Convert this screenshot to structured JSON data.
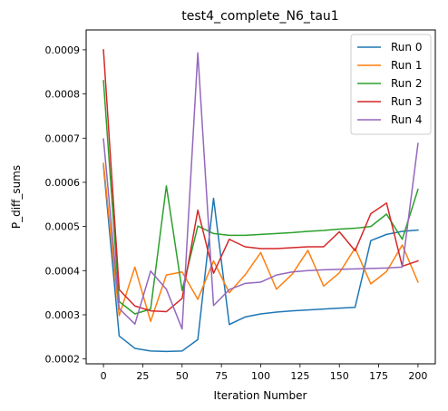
{
  "chart_data": {
    "type": "line",
    "title": "test4_complete_N6_tau1",
    "xlabel": "Iteration Number",
    "ylabel": "P_diff_sums",
    "xlim": [
      -11,
      211
    ],
    "ylim": [
      0.000189,
      0.000945
    ],
    "xticks": [
      0,
      25,
      50,
      75,
      100,
      125,
      150,
      175,
      200
    ],
    "xtick_labels": [
      "0",
      "25",
      "50",
      "75",
      "100",
      "125",
      "150",
      "175",
      "200"
    ],
    "yticks": [
      0.0002,
      0.0003,
      0.0004,
      0.0005,
      0.0006,
      0.0007,
      0.0008,
      0.0009
    ],
    "ytick_labels": [
      "0.0002",
      "0.0003",
      "0.0004",
      "0.0005",
      "0.0006",
      "0.0007",
      "0.0008",
      "0.0009"
    ],
    "grid": false,
    "legend_position": "top-right",
    "x": [
      0,
      10,
      20,
      30,
      40,
      50,
      60,
      70,
      80,
      90,
      100,
      110,
      120,
      130,
      140,
      150,
      160,
      170,
      180,
      190,
      200
    ],
    "series": [
      {
        "name": "Run 0",
        "color": "#1f77b4",
        "values": [
          0.000638,
          0.000252,
          0.000224,
          0.000218,
          0.000217,
          0.000218,
          0.000244,
          0.000564,
          0.000278,
          0.000295,
          0.000302,
          0.000306,
          0.000309,
          0.000311,
          0.000313,
          0.000315,
          0.000317,
          0.000468,
          0.000482,
          0.000489,
          0.000492
        ]
      },
      {
        "name": "Run 1",
        "color": "#ff7f0e",
        "values": [
          0.000643,
          0.000298,
          0.000408,
          0.000285,
          0.00039,
          0.000397,
          0.000335,
          0.000422,
          0.00035,
          0.00039,
          0.000441,
          0.000358,
          0.000392,
          0.000446,
          0.000365,
          0.000395,
          0.000451,
          0.00037,
          0.000398,
          0.000458,
          0.000374
        ]
      },
      {
        "name": "Run 2",
        "color": "#2ca02c",
        "values": [
          0.00083,
          0.00033,
          0.000302,
          0.000313,
          0.000592,
          0.000355,
          0.000501,
          0.000484,
          0.00048,
          0.00048,
          0.000482,
          0.000484,
          0.000486,
          0.000489,
          0.000491,
          0.000494,
          0.000496,
          0.0005,
          0.000528,
          0.000471,
          0.000584
        ]
      },
      {
        "name": "Run 3",
        "color": "#d62728",
        "values": [
          0.0009,
          0.000357,
          0.00032,
          0.000309,
          0.000307,
          0.000337,
          0.000537,
          0.000394,
          0.000471,
          0.000454,
          0.00045,
          0.00045,
          0.000452,
          0.000454,
          0.000454,
          0.000488,
          0.000445,
          0.000529,
          0.000553,
          0.00041,
          0.000422
        ]
      },
      {
        "name": "Run 4",
        "color": "#9467bd",
        "values": [
          0.000698,
          0.000314,
          0.000279,
          0.000399,
          0.000358,
          0.000268,
          0.000893,
          0.000321,
          0.000357,
          0.000371,
          0.000374,
          0.00039,
          0.000397,
          0.0004,
          0.000402,
          0.000403,
          0.000404,
          0.000405,
          0.000406,
          0.000408,
          0.000688
        ]
      }
    ]
  }
}
